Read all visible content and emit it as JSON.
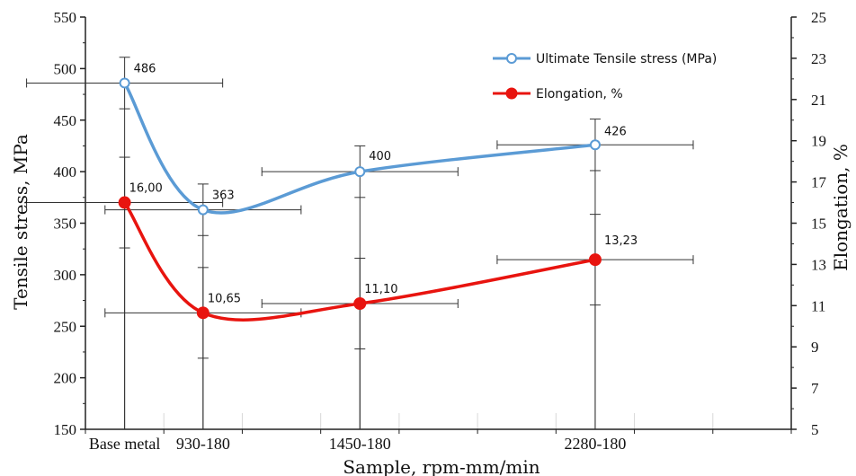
{
  "chart_data": {
    "type": "line",
    "categories": [
      "Base metal",
      "930-180",
      "1450-180",
      "2280-180"
    ],
    "xlabel": "Sample, rpm-mm/min",
    "ylabel": "Tensile stress, MPa",
    "y2label": "Elongation, %",
    "ylim": [
      150,
      550
    ],
    "y2lim": [
      5,
      25
    ],
    "yticks": [
      150,
      200,
      250,
      300,
      350,
      400,
      450,
      500,
      550
    ],
    "y2ticks": [
      5,
      7,
      9,
      11,
      13,
      15,
      17,
      19,
      21,
      23,
      25
    ],
    "grid": false,
    "legend_position": "top-right",
    "series": [
      {
        "name": "Ultimate Tensile stress (MPa)",
        "axis": "left",
        "color": "#5b9bd5",
        "marker": "open-circle",
        "values": [
          486,
          363,
          400,
          426
        ],
        "labels": [
          "486",
          "363",
          "400",
          "426"
        ],
        "y_error": [
          25,
          25,
          25,
          25
        ],
        "x_error": [
          1.25,
          1.25,
          1.25,
          1.25
        ]
      },
      {
        "name": "Elongation, %",
        "axis": "right",
        "color": "#e8140f",
        "marker": "filled-circle",
        "values": [
          16.0,
          10.65,
          11.1,
          13.23
        ],
        "labels": [
          "16,00",
          "10,65",
          "11,10",
          "13,23"
        ],
        "y_error": [
          2.2,
          2.2,
          2.2,
          2.2
        ],
        "x_error": [
          1.25,
          1.25,
          1.25,
          1.25
        ]
      }
    ]
  }
}
